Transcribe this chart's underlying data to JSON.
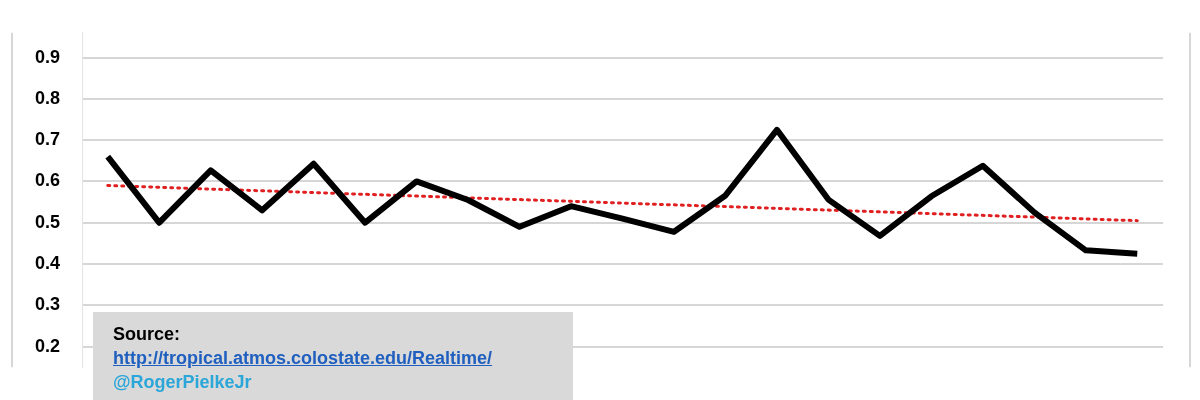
{
  "chart_data": {
    "type": "line",
    "categories": [
      null,
      null,
      null,
      null,
      null,
      null,
      null,
      null,
      null,
      null,
      null,
      null,
      null,
      null,
      null,
      null,
      null,
      null,
      null,
      null,
      null
    ],
    "series": [
      {
        "color": "#000000",
        "values": [
          0.66,
          0.5,
          0.627,
          0.53,
          0.643,
          0.5,
          0.6,
          0.555,
          0.49,
          0.54,
          0.51,
          0.478,
          0.566,
          0.725,
          0.556,
          0.468,
          0.564,
          0.638,
          0.525,
          0.433,
          0.425
        ]
      },
      {
        "type": "line",
        "color": "#e02020",
        "line_style": "dotted",
        "values": [
          0.59,
          null,
          null,
          null,
          null,
          null,
          null,
          null,
          null,
          null,
          null,
          null,
          null,
          null,
          null,
          null,
          null,
          null,
          null,
          null,
          0.505
        ]
      }
    ],
    "ylim": [
      0.15,
      0.96
    ],
    "yticks": [
      0.2,
      0.3,
      0.4,
      0.5,
      0.6,
      0.7,
      0.8,
      0.9
    ],
    "grid": "y",
    "legend": false,
    "marker": "none",
    "line_style": "solid",
    "annotations": [
      "Source:",
      "http://tropical.atmos.colostate.edu/Realtime/",
      "@RogerPielkeJr"
    ]
  }
}
